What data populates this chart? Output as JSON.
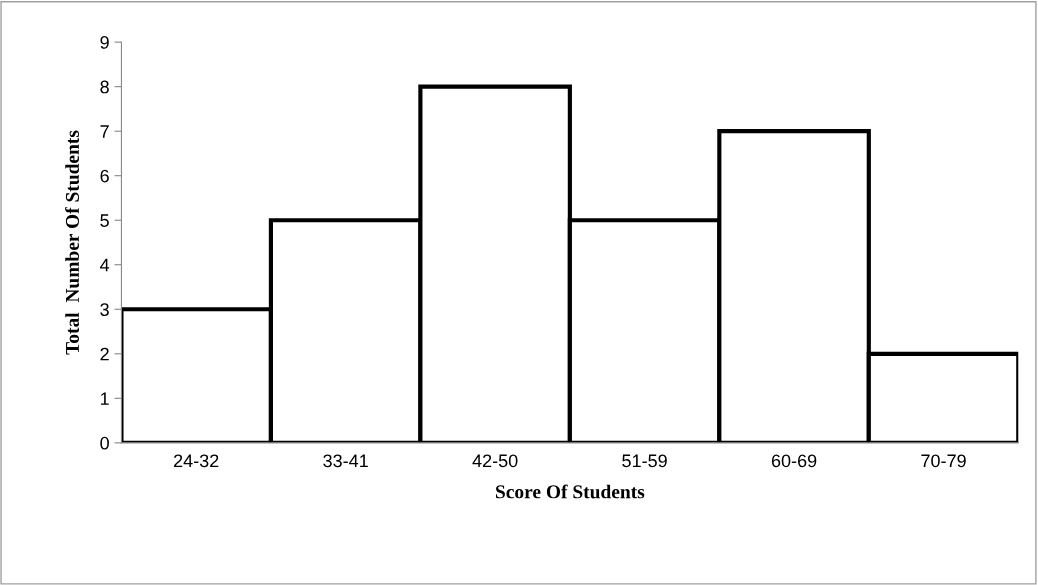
{
  "chart_data": {
    "type": "bar",
    "xlabel": "Score Of Students",
    "ylabel": "Total  Number Of Students",
    "categories": [
      "24-32",
      "33-41",
      "42-50",
      "51-59",
      "60-69",
      "70-79"
    ],
    "values": [
      3,
      5,
      8,
      5,
      7,
      2
    ],
    "color": "#ffffff",
    "ylim": [
      0,
      9
    ],
    "yticks": [
      0,
      1,
      2,
      3,
      4,
      5,
      6,
      7,
      8,
      9
    ],
    "grid": false,
    "legend": false
  }
}
